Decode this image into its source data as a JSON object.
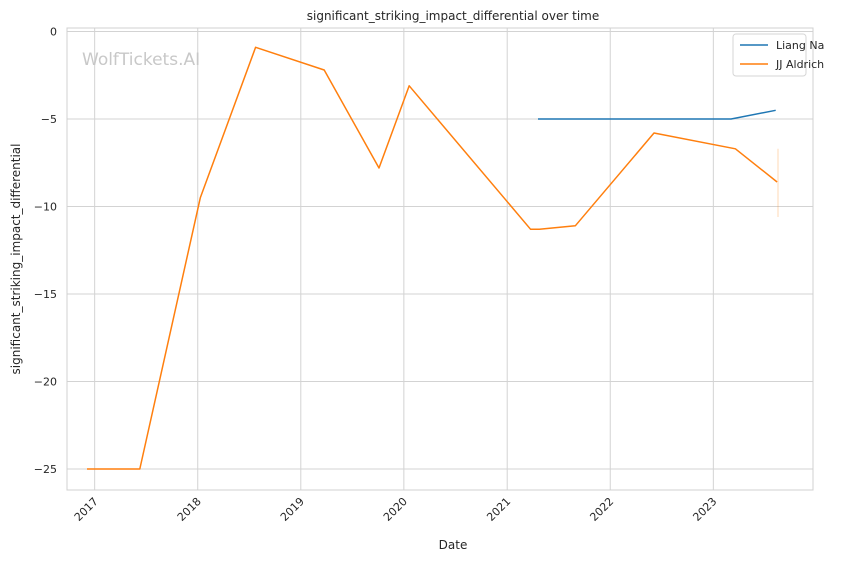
{
  "watermark": "WolfTickets.AI",
  "chart_data": {
    "type": "line",
    "title": "significant_striking_impact_differential over time",
    "xlabel": "Date",
    "ylabel": "significant_striking_impact_differential",
    "xlim": [
      "2016-09-25",
      "2023-12-20"
    ],
    "ylim": [
      -26.2,
      0.2
    ],
    "x_ticks": [
      "2017-01-01",
      "2018-01-01",
      "2019-01-01",
      "2020-01-01",
      "2021-01-01",
      "2022-01-01",
      "2023-01-01"
    ],
    "x_tick_labels": [
      "2017",
      "2018",
      "2019",
      "2020",
      "2021",
      "2022",
      "2023"
    ],
    "y_ticks": [
      0,
      -5,
      -10,
      -15,
      -20,
      -25
    ],
    "y_tick_labels": [
      "0",
      "−5",
      "−10",
      "−15",
      "−20",
      "−25"
    ],
    "grid": true,
    "legend": "top-right",
    "series": [
      {
        "name": "Liang Na",
        "color": "#1f77b4",
        "points": [
          {
            "x": "2021-04-20",
            "y": -5.0
          },
          {
            "x": "2023-03-05",
            "y": -5.0
          },
          {
            "x": "2023-08-10",
            "y": -4.5
          }
        ]
      },
      {
        "name": "JJ Aldrich",
        "color": "#ff7f0e",
        "points": [
          {
            "x": "2016-12-05",
            "y": -25.0
          },
          {
            "x": "2017-06-10",
            "y": -25.0
          },
          {
            "x": "2018-01-10",
            "y": -9.5
          },
          {
            "x": "2018-07-25",
            "y": -0.9
          },
          {
            "x": "2019-03-25",
            "y": -2.2
          },
          {
            "x": "2019-10-05",
            "y": -7.8
          },
          {
            "x": "2020-01-20",
            "y": -3.1
          },
          {
            "x": "2021-03-25",
            "y": -11.3
          },
          {
            "x": "2021-04-25",
            "y": -11.3
          },
          {
            "x": "2021-08-30",
            "y": -11.1
          },
          {
            "x": "2022-06-05",
            "y": -5.8
          },
          {
            "x": "2023-03-20",
            "y": -6.7
          },
          {
            "x": "2023-08-15",
            "y": -8.6
          }
        ],
        "error_bar": {
          "x": "2023-08-18",
          "low": -10.6,
          "high": -6.7
        }
      }
    ]
  }
}
